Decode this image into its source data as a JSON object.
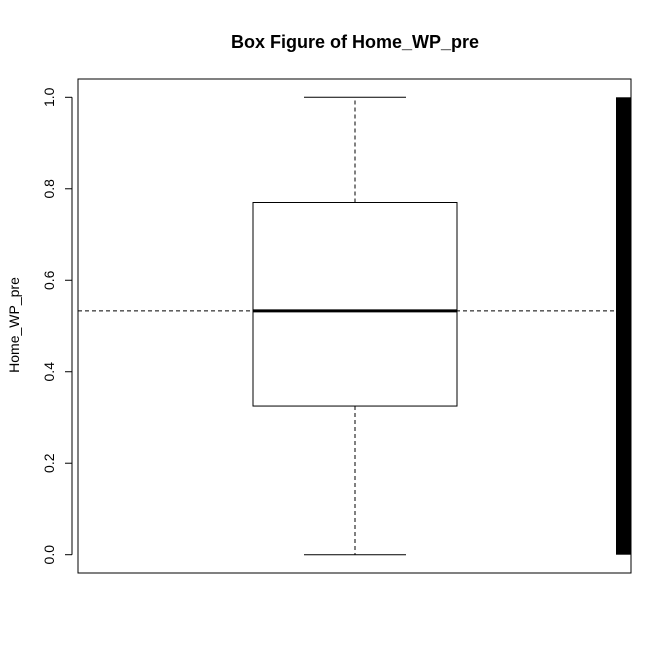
{
  "chart_data": {
    "type": "box",
    "title": "Box Figure of Home_WP_pre",
    "xlabel": "",
    "ylabel": "Home_WP_pre",
    "ylim": [
      -0.04,
      1.04
    ],
    "y_ticks": [
      0.0,
      0.2,
      0.4,
      0.6,
      0.8,
      1.0
    ],
    "y_tick_labels": [
      "0.0",
      "0.2",
      "0.4",
      "0.6",
      "0.8",
      "1.0"
    ],
    "grid": false,
    "box": {
      "whisker_low": 0.0,
      "q1": 0.325,
      "median": 0.533,
      "q3": 0.77,
      "whisker_high": 1.0
    },
    "reference_line": {
      "y": 0.533,
      "style": "dashed"
    },
    "rug": {
      "from": 0.0,
      "to": 1.0,
      "color": "#000000"
    }
  }
}
